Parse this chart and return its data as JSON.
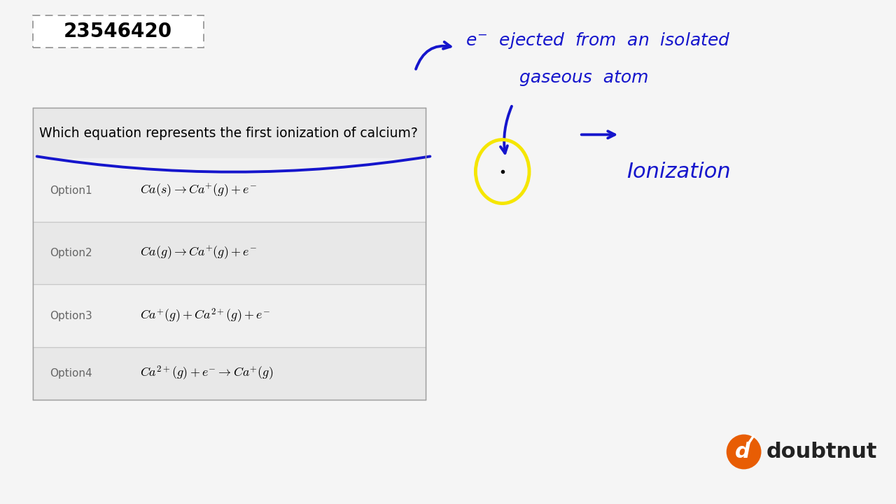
{
  "bg_color": "#f7f7f7",
  "id_box_text": "23546420",
  "question_text": "Which equation represents the first ionization of calcium?",
  "options": [
    {
      "label": "Option1",
      "equation": "$Ca(s) \\rightarrow Ca^{+}(g) + e^{-}$"
    },
    {
      "label": "Option2",
      "equation": "$Ca(g) \\rightarrow Ca^{+}(g) + e^{-}$"
    },
    {
      "label": "Option3",
      "equation": "$Ca^{+}(g) + Ca^{2+}(g) + e^{-}$"
    },
    {
      "label": "Option4",
      "equation": "$Ca^{2+}(g) + e^{-} \\rightarrow Ca^{+}(g)$"
    }
  ],
  "hw_color": "#1515cc",
  "yellow_color": "#f5e600",
  "orange_color": "#e85d04",
  "gray_text": "#666666",
  "light_gray_bg": "#efefef",
  "separator_color": "#c8c8c8",
  "table_border_color": "#a0a0a0"
}
